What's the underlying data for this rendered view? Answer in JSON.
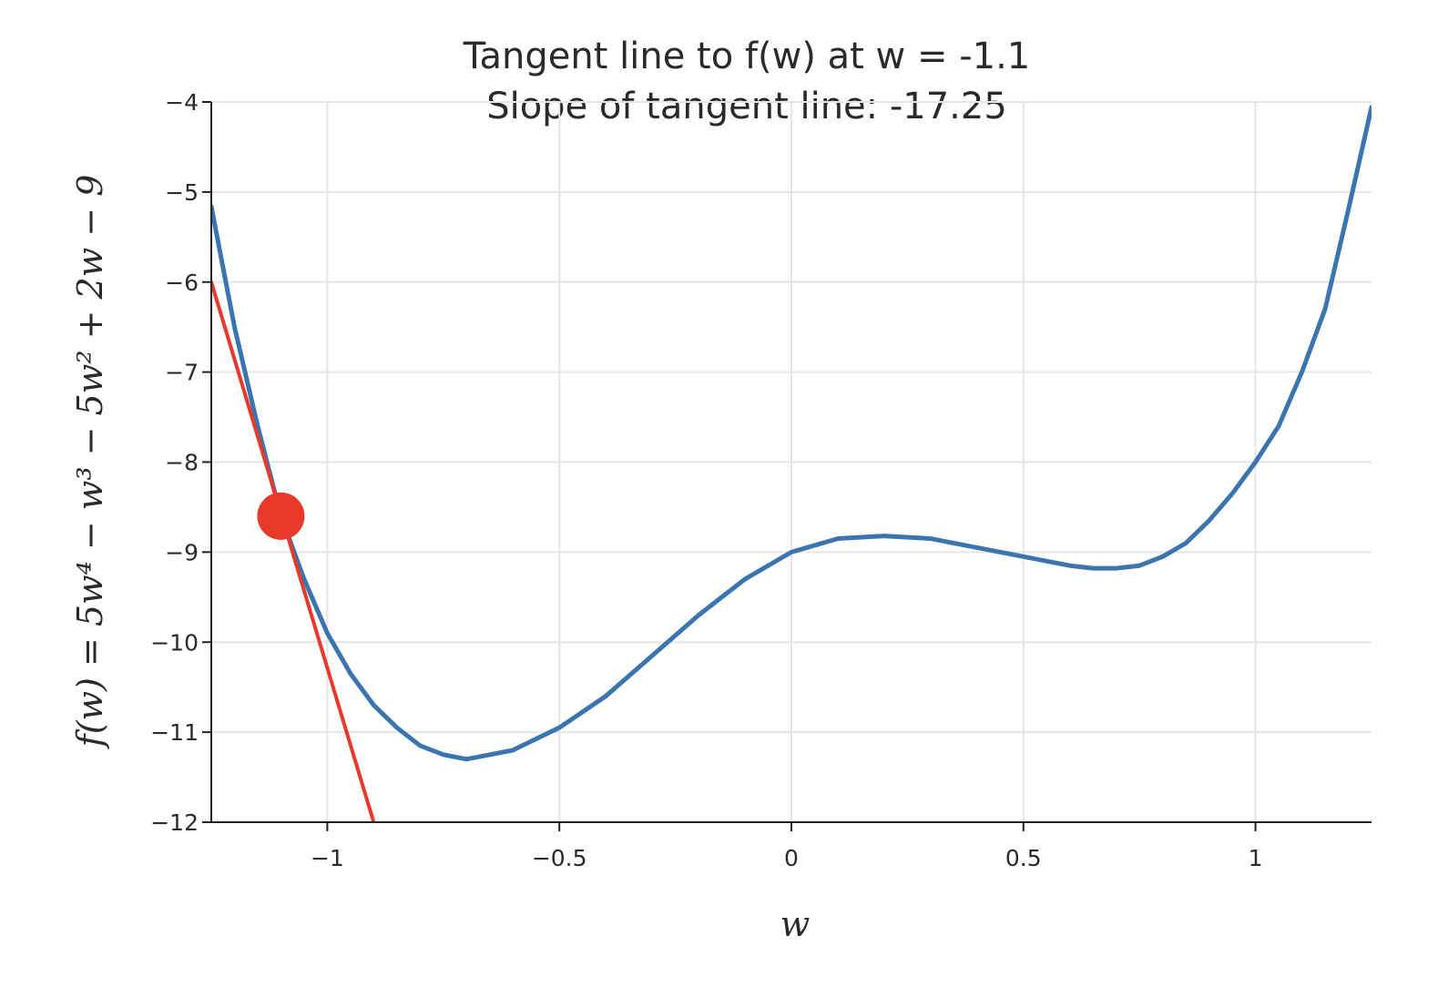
{
  "chart_data": {
    "type": "line",
    "title": "Tangent line to f(w) at w = -1.1",
    "subtitle": "Slope of tangent line: -17.25",
    "xlabel": "w",
    "ylabel": "f(w) = 5w⁴ − w³ − 5w² + 2w − 9",
    "xlim": [
      -1.25,
      1.25
    ],
    "ylim": [
      -12,
      -4
    ],
    "x_ticks": [
      -1,
      -0.5,
      0,
      0.5,
      1
    ],
    "x_tick_labels": [
      "−1",
      "−0.5",
      "0",
      "0.5",
      "1"
    ],
    "y_ticks": [
      -4,
      -5,
      -6,
      -7,
      -8,
      -9,
      -10,
      -11,
      -12
    ],
    "y_tick_labels": [
      "−4",
      "−5",
      "−6",
      "−7",
      "−8",
      "−9",
      "−10",
      "−11",
      "−12"
    ],
    "grid": true,
    "series": [
      {
        "kind": "curve",
        "color": "#3b75af",
        "x": [
          -1.25,
          -1.2,
          -1.15,
          -1.1,
          -1.05,
          -1.0,
          -0.95,
          -0.9,
          -0.85,
          -0.8,
          -0.75,
          -0.7,
          -0.6,
          -0.5,
          -0.4,
          -0.3,
          -0.2,
          -0.1,
          0.0,
          0.1,
          0.2,
          0.3,
          0.4,
          0.5,
          0.6,
          0.65,
          0.7,
          0.75,
          0.8,
          0.85,
          0.9,
          0.95,
          1.0,
          1.05,
          1.1,
          1.15,
          1.2,
          1.25
        ],
        "y": [
          -5.16,
          -6.5,
          -7.6,
          -8.6,
          -9.3,
          -9.9,
          -10.35,
          -10.7,
          -10.95,
          -11.15,
          -11.25,
          -11.3,
          -11.2,
          -10.95,
          -10.6,
          -10.15,
          -9.7,
          -9.3,
          -9.0,
          -8.85,
          -8.82,
          -8.85,
          -8.95,
          -9.05,
          -9.15,
          -9.18,
          -9.18,
          -9.15,
          -9.05,
          -8.9,
          -8.65,
          -8.35,
          -8.0,
          -7.6,
          -7.0,
          -6.3,
          -5.2,
          -4.06
        ]
      },
      {
        "kind": "tangent",
        "color": "#e8392a",
        "x": [
          -1.25,
          -0.9
        ],
        "y": [
          -6.0,
          -12.0
        ]
      }
    ],
    "point": {
      "x": -1.1,
      "y": -8.6,
      "color": "#e8392a"
    }
  }
}
